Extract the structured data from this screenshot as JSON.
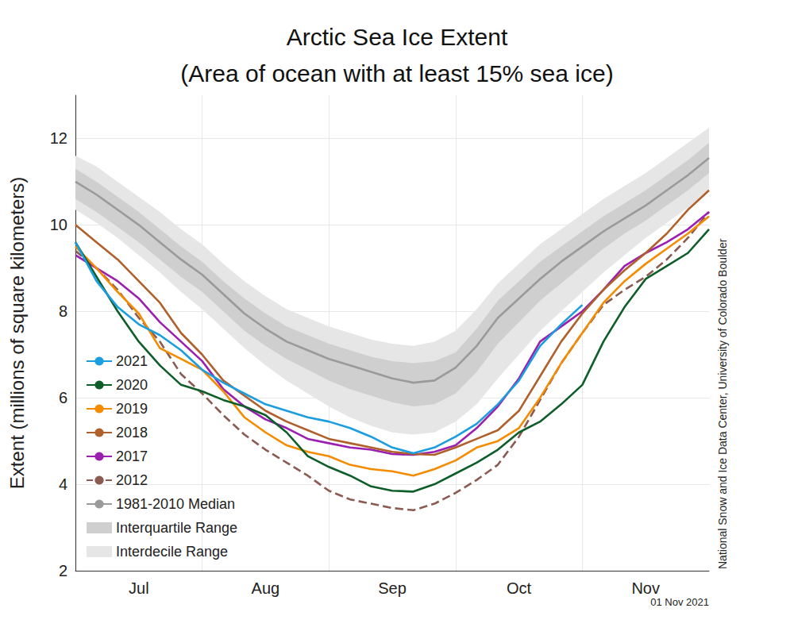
{
  "chart_data": {
    "type": "line",
    "title": "Arctic Sea Ice Extent",
    "subtitle": "(Area of ocean with at least 15% sea ice)",
    "y_label": "Extent (millions of square kilometers)",
    "annotations": [
      "National Snow and Ice Data Center, University of Colorado Boulder",
      "01 Nov 2021"
    ],
    "categories": [
      null,
      null,
      null,
      "Jul",
      null,
      null,
      null,
      null,
      null,
      "Aug",
      null,
      null,
      null,
      null,
      null,
      "Sep",
      null,
      null,
      null,
      null,
      null,
      "Oct",
      null,
      null,
      null,
      null,
      null,
      "Nov",
      null,
      null,
      null
    ],
    "ylim": [
      2,
      13
    ],
    "yticks": [
      2,
      4,
      6,
      8,
      10,
      12
    ],
    "grid": true,
    "legend": "lower left",
    "series": [
      {
        "name": "2021",
        "color": "#1a9ee0",
        "values": [
          9.6,
          8.7,
          8.1,
          7.7,
          7.45,
          7.1,
          6.65,
          6.35,
          6.1,
          5.85,
          5.7,
          5.55,
          5.45,
          5.3,
          5.1,
          4.85,
          4.72,
          4.85,
          5.1,
          5.4,
          5.85,
          6.4,
          7.2,
          7.7,
          8.15,
          null,
          null,
          null,
          null,
          null,
          null
        ]
      },
      {
        "name": "2020",
        "color": "#0e5e2a",
        "values": [
          9.6,
          8.8,
          8.0,
          7.3,
          6.75,
          6.3,
          6.15,
          5.95,
          5.8,
          5.6,
          5.2,
          4.65,
          4.4,
          4.2,
          3.95,
          3.85,
          3.83,
          4.0,
          4.25,
          4.5,
          4.8,
          5.2,
          5.45,
          5.85,
          6.3,
          7.3,
          8.1,
          8.75,
          9.05,
          9.35,
          9.9
        ]
      },
      {
        "name": "2019",
        "color": "#f58b00",
        "values": [
          9.5,
          9.0,
          8.45,
          7.95,
          7.15,
          6.9,
          6.65,
          6.15,
          5.55,
          5.2,
          4.9,
          4.75,
          4.65,
          4.45,
          4.35,
          4.3,
          4.2,
          4.35,
          4.55,
          4.85,
          5.0,
          5.3,
          6.0,
          6.8,
          7.5,
          8.2,
          8.7,
          9.1,
          9.45,
          9.8,
          10.2
        ]
      },
      {
        "name": "2018",
        "color": "#b0602a",
        "values": [
          10.0,
          9.6,
          9.2,
          8.7,
          8.2,
          7.5,
          7.0,
          6.4,
          6.05,
          5.7,
          5.45,
          5.25,
          5.05,
          4.95,
          4.85,
          4.75,
          4.7,
          4.68,
          4.85,
          5.05,
          5.25,
          5.7,
          6.5,
          7.3,
          7.95,
          8.5,
          8.95,
          9.35,
          9.8,
          10.35,
          10.8
        ]
      },
      {
        "name": "2017",
        "color": "#9b1fb0",
        "values": [
          9.3,
          9.0,
          8.7,
          8.3,
          7.75,
          7.3,
          6.85,
          6.2,
          5.8,
          5.5,
          5.3,
          5.05,
          4.95,
          4.85,
          4.8,
          4.7,
          4.68,
          4.75,
          4.9,
          5.3,
          5.8,
          6.45,
          7.3,
          7.65,
          8.0,
          8.5,
          9.05,
          9.35,
          9.6,
          9.9,
          10.3
        ]
      },
      {
        "name": "2012",
        "color": "#8b5a50",
        "line_style": "dashed",
        "values": [
          9.4,
          9.0,
          8.5,
          7.85,
          7.3,
          6.55,
          6.1,
          5.6,
          5.15,
          4.8,
          4.5,
          4.2,
          3.85,
          3.65,
          3.55,
          3.45,
          3.4,
          3.55,
          3.8,
          4.1,
          4.45,
          5.1,
          5.95,
          6.8,
          7.5,
          8.15,
          8.5,
          8.8,
          9.2,
          9.7,
          10.3
        ]
      },
      {
        "name": "1981-2010 Median",
        "color": "#9a9a9a",
        "values": [
          11.0,
          10.7,
          10.35,
          10.0,
          9.6,
          9.2,
          8.85,
          8.4,
          7.95,
          7.6,
          7.3,
          7.1,
          6.9,
          6.75,
          6.6,
          6.45,
          6.35,
          6.4,
          6.7,
          7.2,
          7.85,
          8.3,
          8.75,
          9.15,
          9.5,
          9.85,
          10.15,
          10.45,
          10.8,
          11.15,
          11.55
        ]
      },
      {
        "name": "Interquartile Range",
        "type": "band",
        "color": "#cfcfcf",
        "lower": [
          10.6,
          10.3,
          9.95,
          9.6,
          9.2,
          8.8,
          8.45,
          8.0,
          7.55,
          7.2,
          6.9,
          6.65,
          6.4,
          6.2,
          6.05,
          5.9,
          5.8,
          5.85,
          6.1,
          6.6,
          7.25,
          7.75,
          8.25,
          8.65,
          9.05,
          9.45,
          9.8,
          10.1,
          10.45,
          10.8,
          11.2
        ],
        "upper": [
          11.3,
          11.0,
          10.65,
          10.3,
          9.9,
          9.5,
          9.15,
          8.7,
          8.3,
          7.95,
          7.65,
          7.45,
          7.25,
          7.1,
          6.95,
          6.85,
          6.8,
          6.85,
          7.05,
          7.6,
          8.25,
          8.7,
          9.15,
          9.5,
          9.85,
          10.2,
          10.5,
          10.8,
          11.15,
          11.5,
          11.9
        ]
      },
      {
        "name": "Interdecile Range",
        "type": "band",
        "color": "#e6e6e6",
        "lower": [
          10.35,
          10.05,
          9.7,
          9.3,
          8.9,
          8.45,
          8.05,
          7.6,
          7.15,
          6.75,
          6.4,
          6.1,
          5.8,
          5.55,
          5.35,
          5.2,
          5.15,
          5.2,
          5.45,
          5.85,
          6.45,
          7.0,
          7.55,
          8.0,
          8.45,
          8.9,
          9.3,
          9.7,
          10.05,
          10.4,
          10.8
        ],
        "upper": [
          11.6,
          11.35,
          11.0,
          10.65,
          10.3,
          9.9,
          9.55,
          9.1,
          8.7,
          8.35,
          8.05,
          7.85,
          7.65,
          7.5,
          7.35,
          7.25,
          7.2,
          7.3,
          7.55,
          8.05,
          8.65,
          9.1,
          9.55,
          9.9,
          10.25,
          10.6,
          10.9,
          11.2,
          11.55,
          11.9,
          12.25
        ]
      }
    ]
  }
}
